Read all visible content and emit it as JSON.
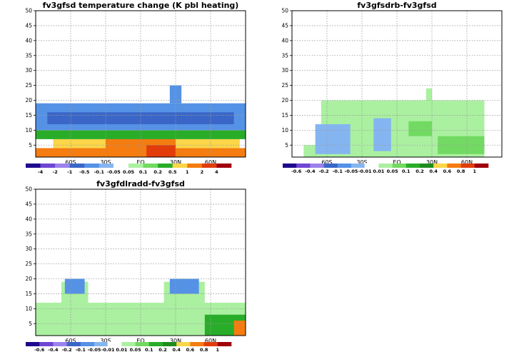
{
  "chart_data": [
    {
      "type": "heatmap",
      "title": "fv3gfsd temperature change (K pbl heating)",
      "x_tick_labels": [
        "60S",
        "30S",
        "EQ",
        "30N",
        "60N"
      ],
      "y_ticks": [
        5,
        10,
        15,
        20,
        25,
        30,
        35,
        40,
        45,
        50
      ],
      "ylim": [
        1,
        50
      ],
      "xlim": [
        -90,
        90
      ],
      "grid": true,
      "colorbar": {
        "levels": [
          "-4",
          "-2",
          "-1",
          "-0.5",
          "-0.1",
          "-0.05",
          "0.05",
          "0.1",
          "0.2",
          "0.5",
          "1",
          "2",
          "4"
        ],
        "colors": [
          "#1e0a8c",
          "#6e46d2",
          "#9b82ec",
          "#3a66c8",
          "#5592e6",
          "#85b5f0",
          "#ffffff",
          "#aaf0a0",
          "#72da62",
          "#29ad29",
          "#fbd648",
          "#f47c10",
          "#e13c0a",
          "#a0000e"
        ]
      },
      "bands": [
        {
          "lat": [
            -90,
            90
          ],
          "lev": [
            1,
            4
          ],
          "value": 1.5
        },
        {
          "lat": [
            -75,
            85
          ],
          "lev": [
            4,
            7
          ],
          "value": 0.7
        },
        {
          "lat": [
            -30,
            30
          ],
          "lev": [
            1,
            9
          ],
          "value": 1.5
        },
        {
          "lat": [
            5,
            30
          ],
          "lev": [
            1,
            5
          ],
          "value": 3
        },
        {
          "lat": [
            -90,
            90
          ],
          "lev": [
            7,
            10
          ],
          "value": 0.3
        },
        {
          "lat": [
            -90,
            90
          ],
          "lev": [
            10,
            19
          ],
          "value": -0.3
        },
        {
          "lat": [
            -80,
            80
          ],
          "lev": [
            12,
            16
          ],
          "value": -0.7
        },
        {
          "lat": [
            25,
            35
          ],
          "lev": [
            19,
            25
          ],
          "value": -0.3
        }
      ]
    },
    {
      "type": "heatmap",
      "title": "fv3gfsdrb-fv3gfsd",
      "x_tick_labels": [
        "60S",
        "30S",
        "EQ",
        "30N",
        "60N"
      ],
      "y_ticks": [
        5,
        10,
        15,
        20,
        25,
        30,
        35,
        40,
        45,
        50
      ],
      "ylim": [
        1,
        50
      ],
      "xlim": [
        -90,
        90
      ],
      "grid": true,
      "colorbar": {
        "levels": [
          "-0.6",
          "-0.4",
          "-0.2",
          "-0.1",
          "-0.05",
          "-0.01",
          "0.01",
          "0.05",
          "0.1",
          "0.2",
          "0.4",
          "0.6",
          "0.8",
          "1"
        ],
        "colors": [
          "#1e0a8c",
          "#6e46d2",
          "#9b82ec",
          "#3a66c8",
          "#5592e6",
          "#85b5f0",
          "#ffffff",
          "#aaf0a0",
          "#72da62",
          "#29ad29",
          "#1e8c1e",
          "#fbd648",
          "#f47c10",
          "#e13c0a",
          "#a0000e"
        ]
      },
      "bands": [
        {
          "lat": [
            -80,
            75
          ],
          "lev": [
            1,
            5
          ],
          "value": 0.03
        },
        {
          "lat": [
            -65,
            75
          ],
          "lev": [
            5,
            20
          ],
          "value": 0.02
        },
        {
          "lat": [
            -20,
            -5
          ],
          "lev": [
            3,
            14
          ],
          "value": -0.03
        },
        {
          "lat": [
            -70,
            -40
          ],
          "lev": [
            2,
            12
          ],
          "value": -0.03
        },
        {
          "lat": [
            10,
            30
          ],
          "lev": [
            8,
            13
          ],
          "value": 0.08
        },
        {
          "lat": [
            35,
            75
          ],
          "lev": [
            2,
            8
          ],
          "value": 0.07
        },
        {
          "lat": [
            25,
            30
          ],
          "lev": [
            20,
            24
          ],
          "value": 0.02
        }
      ]
    },
    {
      "type": "heatmap",
      "title": "fv3gfdlradd-fv3gfsd",
      "x_tick_labels": [
        "60S",
        "30S",
        "EQ",
        "30N",
        "60N"
      ],
      "y_ticks": [
        5,
        10,
        15,
        20,
        25,
        30,
        35,
        40,
        45,
        50
      ],
      "ylim": [
        1,
        50
      ],
      "xlim": [
        -90,
        90
      ],
      "grid": true,
      "colorbar": {
        "levels": [
          "-0.6",
          "-0.4",
          "-0.2",
          "-0.1",
          "-0.05",
          "-0.01",
          "0.01",
          "0.05",
          "0.1",
          "0.2",
          "0.4",
          "0.6",
          "0.8",
          "1"
        ],
        "colors": [
          "#1e0a8c",
          "#6e46d2",
          "#9b82ec",
          "#3a66c8",
          "#5592e6",
          "#85b5f0",
          "#ffffff",
          "#aaf0a0",
          "#72da62",
          "#29ad29",
          "#1e8c1e",
          "#fbd648",
          "#f47c10",
          "#e13c0a",
          "#a0000e"
        ]
      },
      "bands": [
        {
          "lat": [
            -90,
            90
          ],
          "lev": [
            1,
            12
          ],
          "value": 0.03
        },
        {
          "lat": [
            -68,
            -45
          ],
          "lev": [
            12,
            19
          ],
          "value": 0.02
        },
        {
          "lat": [
            20,
            55
          ],
          "lev": [
            12,
            19
          ],
          "value": 0.02
        },
        {
          "lat": [
            -65,
            -48
          ],
          "lev": [
            15,
            20
          ],
          "value": -0.07
        },
        {
          "lat": [
            25,
            50
          ],
          "lev": [
            15,
            20
          ],
          "value": -0.07
        },
        {
          "lat": [
            55,
            90
          ],
          "lev": [
            1,
            8
          ],
          "value": 0.2
        },
        {
          "lat": [
            80,
            90
          ],
          "lev": [
            1,
            6
          ],
          "value": 0.7
        }
      ]
    }
  ]
}
